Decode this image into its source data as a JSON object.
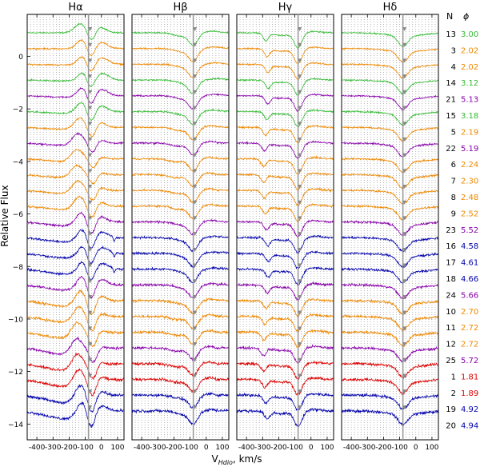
{
  "chart_data": {
    "type": "line",
    "ylabel": "Relative Flux",
    "xlabel": "V_Hdio, km/s",
    "xlabel_main": "V",
    "xlabel_sub": "Hdio",
    "xlabel_unit": ", km/s",
    "xlim": [
      -460,
      140
    ],
    "ylim": [
      -14.6,
      1.6
    ],
    "xticks": [
      -400,
      -300,
      -200,
      -100,
      0,
      100
    ],
    "xtick_labels": [
      "-400",
      "-300",
      "-200",
      "-100",
      "0",
      "100"
    ],
    "yticks": [
      0,
      -2,
      -4,
      -6,
      -8,
      -10,
      -12,
      -14
    ],
    "ytick_labels": [
      "0",
      "−2",
      "−4",
      "−6",
      "−8",
      "−10",
      "−12",
      "−14"
    ],
    "vline_x": -80,
    "panels": [
      {
        "name": "halpha",
        "title": "Hα",
        "profile": "halpha"
      },
      {
        "name": "hbeta",
        "title": "Hβ",
        "profile": "hbeta"
      },
      {
        "name": "hgamma",
        "title": "Hγ",
        "profile": "hgamma"
      },
      {
        "name": "hdelta",
        "title": "Hδ",
        "profile": "hdelta"
      }
    ],
    "table_header": {
      "n": "N",
      "phi": "ϕ"
    },
    "spectra": [
      {
        "n": "13",
        "phase": "3.00",
        "color": "#33bb33",
        "offset": 0.9
      },
      {
        "n": "3",
        "phase": "2.02",
        "color": "#ee8800",
        "offset": 0.3
      },
      {
        "n": "4",
        "phase": "2.02",
        "color": "#ee8800",
        "offset": -0.3
      },
      {
        "n": "14",
        "phase": "3.12",
        "color": "#33bb33",
        "offset": -0.9
      },
      {
        "n": "21",
        "phase": "5.13",
        "color": "#8800aa",
        "offset": -1.5
      },
      {
        "n": "15",
        "phase": "3.18",
        "color": "#33bb33",
        "offset": -2.1
      },
      {
        "n": "5",
        "phase": "2.19",
        "color": "#ee8800",
        "offset": -2.7
      },
      {
        "n": "22",
        "phase": "5.19",
        "color": "#8800aa",
        "offset": -3.3
      },
      {
        "n": "6",
        "phase": "2.24",
        "color": "#ee8800",
        "offset": -3.9
      },
      {
        "n": "7",
        "phase": "2.30",
        "color": "#ee8800",
        "offset": -4.5
      },
      {
        "n": "8",
        "phase": "2.48",
        "color": "#ee8800",
        "offset": -5.1
      },
      {
        "n": "9",
        "phase": "2.52",
        "color": "#ee8800",
        "offset": -5.7
      },
      {
        "n": "23",
        "phase": "5.52",
        "color": "#8800aa",
        "offset": -6.3
      },
      {
        "n": "16",
        "phase": "4.58",
        "color": "#0000aa",
        "offset": -6.9
      },
      {
        "n": "17",
        "phase": "4.61",
        "color": "#0000aa",
        "offset": -7.5
      },
      {
        "n": "18",
        "phase": "4.66",
        "color": "#0000aa",
        "offset": -8.1
      },
      {
        "n": "24",
        "phase": "5.66",
        "color": "#8800aa",
        "offset": -8.7
      },
      {
        "n": "10",
        "phase": "2.70",
        "color": "#ee8800",
        "offset": -9.3
      },
      {
        "n": "11",
        "phase": "2.72",
        "color": "#ee8800",
        "offset": -9.9
      },
      {
        "n": "12",
        "phase": "2.72",
        "color": "#ee8800",
        "offset": -10.5
      },
      {
        "n": "25",
        "phase": "5.72",
        "color": "#8800aa",
        "offset": -11.1
      },
      {
        "n": "1",
        "phase": "1.81",
        "color": "#dd0000",
        "offset": -11.7
      },
      {
        "n": "2",
        "phase": "1.89",
        "color": "#dd0000",
        "offset": -12.3
      },
      {
        "n": "19",
        "phase": "4.92",
        "color": "#0000aa",
        "offset": -12.9
      },
      {
        "n": "20",
        "phase": "4.94",
        "color": "#0000aa",
        "offset": -13.5
      }
    ]
  }
}
